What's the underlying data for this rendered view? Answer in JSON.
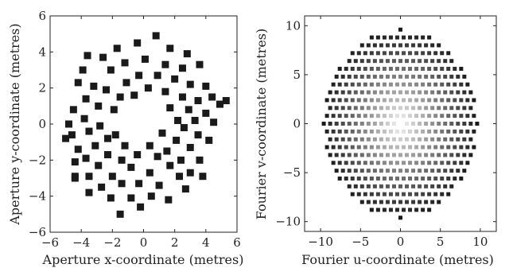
{
  "chart_data": [
    {
      "type": "scatter",
      "title": "",
      "xlabel": "Aperture x-coordinate (metres)",
      "ylabel": "Aperture y-coordinate (metres)",
      "xlim": [
        -6,
        6
      ],
      "ylim": [
        -6,
        6
      ],
      "xticks": [
        -6,
        -4,
        -2,
        0,
        2,
        4,
        6
      ],
      "yticks": [
        -6,
        -4,
        -2,
        0,
        2,
        4,
        6
      ],
      "grid": false,
      "marker": "square",
      "marker_color": "#1a1a1a",
      "points": [
        [
          0.8,
          4.9
        ],
        [
          -0.4,
          4.5
        ],
        [
          -1.7,
          4.2
        ],
        [
          -3.6,
          3.8
        ],
        [
          1.7,
          4.2
        ],
        [
          2.8,
          3.9
        ],
        [
          -2.6,
          3.7
        ],
        [
          0.1,
          3.6
        ],
        [
          -1.2,
          3.4
        ],
        [
          1.4,
          3.3
        ],
        [
          2.5,
          3.1
        ],
        [
          3.6,
          3.3
        ],
        [
          -3.9,
          3.0
        ],
        [
          -2.1,
          3.0
        ],
        [
          -0.3,
          2.7
        ],
        [
          0.9,
          2.7
        ],
        [
          2.0,
          2.5
        ],
        [
          -4.2,
          2.3
        ],
        [
          -3.2,
          2.1
        ],
        [
          -1.1,
          2.3
        ],
        [
          3.0,
          2.2
        ],
        [
          4.0,
          2.1
        ],
        [
          -2.4,
          1.9
        ],
        [
          0.3,
          2.0
        ],
        [
          -0.6,
          1.6
        ],
        [
          1.4,
          1.8
        ],
        [
          2.5,
          1.5
        ],
        [
          4.4,
          1.5
        ],
        [
          -3.7,
          1.4
        ],
        [
          -1.5,
          1.5
        ],
        [
          3.5,
          1.3
        ],
        [
          -4.5,
          0.8
        ],
        [
          -2.9,
          1.0
        ],
        [
          -1.9,
          0.8
        ],
        [
          1.7,
          0.9
        ],
        [
          2.9,
          0.8
        ],
        [
          4.0,
          0.6
        ],
        [
          -3.8,
          0.3
        ],
        [
          2.2,
          0.2
        ],
        [
          3.3,
          0.2
        ],
        [
          4.9,
          1.1
        ],
        [
          5.3,
          1.3
        ],
        [
          -4.8,
          0.0
        ],
        [
          -2.8,
          -0.1
        ],
        [
          2.6,
          -0.2
        ],
        [
          4.5,
          0.1
        ],
        [
          -3.5,
          -0.4
        ],
        [
          -1.8,
          -0.6
        ],
        [
          1.2,
          -0.5
        ],
        [
          3.5,
          -0.6
        ],
        [
          -4.6,
          -0.6
        ],
        [
          -2.3,
          -0.8
        ],
        [
          2.1,
          -0.9
        ],
        [
          4.2,
          -0.9
        ],
        [
          -4.2,
          -1.4
        ],
        [
          -3.1,
          -1.2
        ],
        [
          -1.2,
          -1.2
        ],
        [
          0.4,
          -1.2
        ],
        [
          1.5,
          -1.5
        ],
        [
          3.0,
          -1.3
        ],
        [
          -5.0,
          -0.8
        ],
        [
          -3.7,
          -1.9
        ],
        [
          -2.3,
          -1.7
        ],
        [
          -0.4,
          -1.7
        ],
        [
          0.9,
          -1.8
        ],
        [
          2.4,
          -2.0
        ],
        [
          3.6,
          -2.0
        ],
        [
          -4.4,
          -2.1
        ],
        [
          -2.9,
          -2.3
        ],
        [
          -1.4,
          -2.0
        ],
        [
          1.7,
          -2.3
        ],
        [
          3.0,
          -2.7
        ],
        [
          -3.5,
          -2.9
        ],
        [
          -2.0,
          -2.9
        ],
        [
          -0.8,
          -2.4
        ],
        [
          0.4,
          -2.7
        ],
        [
          2.3,
          -2.9
        ],
        [
          3.8,
          -2.9
        ],
        [
          -4.4,
          -2.9
        ],
        [
          -2.7,
          -3.5
        ],
        [
          -1.4,
          -3.3
        ],
        [
          -0.3,
          -3.3
        ],
        [
          1.0,
          -3.4
        ],
        [
          2.7,
          -3.6
        ],
        [
          -3.5,
          -3.8
        ],
        [
          -2.1,
          -4.1
        ],
        [
          -0.8,
          -4.1
        ],
        [
          0.5,
          -4.0
        ],
        [
          1.6,
          -4.2
        ],
        [
          -1.5,
          -5.0
        ],
        [
          -0.2,
          -4.6
        ],
        [
          -4.4,
          -3.0
        ]
      ]
    },
    {
      "type": "scatter",
      "title": "",
      "xlabel": "Fourier u-coordinate (metres)",
      "ylabel": "Fourier v-coordinate (metres)",
      "xlim": [
        -12,
        12
      ],
      "ylim": [
        -11,
        11
      ],
      "xticks": [
        -10,
        -5,
        0,
        5,
        10
      ],
      "yticks": [
        -10,
        -5,
        0,
        5,
        10
      ],
      "grid": false,
      "marker": "square",
      "coverage_radius": 9.6,
      "grid_spacing": 0.8,
      "color_center": "#ffffff",
      "color_edge": "#1a1a1a"
    }
  ]
}
